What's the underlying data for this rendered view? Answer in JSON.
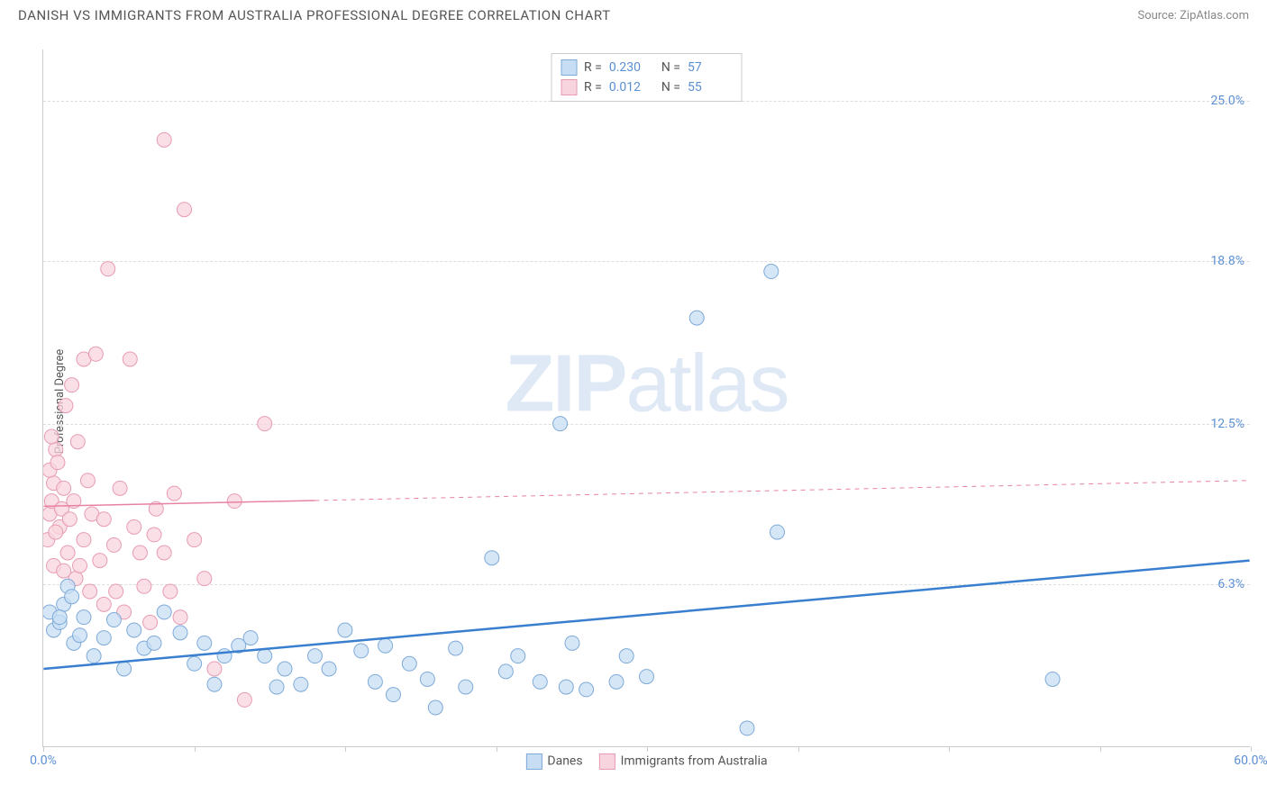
{
  "header": {
    "title": "DANISH VS IMMIGRANTS FROM AUSTRALIA PROFESSIONAL DEGREE CORRELATION CHART",
    "source": "Source: ZipAtlas.com"
  },
  "watermark": {
    "part1": "ZIP",
    "part2": "atlas"
  },
  "chart": {
    "type": "scatter",
    "ylabel": "Professional Degree",
    "xlim": [
      0,
      60
    ],
    "ylim": [
      0,
      27
    ],
    "xtick_positions": [
      0,
      7.5,
      15,
      22.5,
      30,
      37.5,
      45,
      52.5,
      60
    ],
    "xtick_labels_shown": {
      "0": "0.0%",
      "60": "60.0%"
    },
    "ytick_positions": [
      6.3,
      12.5,
      18.8,
      25.0
    ],
    "ytick_labels": [
      "6.3%",
      "12.5%",
      "18.8%",
      "25.0%"
    ],
    "grid_color": "#dddddd",
    "axis_color": "#cccccc",
    "background_color": "#ffffff",
    "series": {
      "danes": {
        "label": "Danes",
        "color_fill": "#c7ddf3",
        "color_stroke": "#7eaad8",
        "marker_radius": 8,
        "stroke_width": 1,
        "points": [
          [
            0.3,
            5.2
          ],
          [
            0.5,
            4.5
          ],
          [
            0.8,
            4.8
          ],
          [
            1.0,
            5.5
          ],
          [
            1.2,
            6.2
          ],
          [
            1.5,
            4.0
          ],
          [
            1.4,
            5.8
          ],
          [
            1.8,
            4.3
          ],
          [
            2.0,
            5.0
          ],
          [
            2.5,
            3.5
          ],
          [
            3.0,
            4.2
          ],
          [
            3.5,
            4.9
          ],
          [
            4.0,
            3.0
          ],
          [
            4.5,
            4.5
          ],
          [
            5.0,
            3.8
          ],
          [
            5.5,
            4.0
          ],
          [
            6.0,
            5.2
          ],
          [
            6.8,
            4.4
          ],
          [
            7.5,
            3.2
          ],
          [
            8.0,
            4.0
          ],
          [
            8.5,
            2.4
          ],
          [
            9.0,
            3.5
          ],
          [
            9.7,
            3.9
          ],
          [
            10.3,
            4.2
          ],
          [
            11.0,
            3.5
          ],
          [
            11.6,
            2.3
          ],
          [
            12.0,
            3.0
          ],
          [
            12.8,
            2.4
          ],
          [
            13.5,
            3.5
          ],
          [
            14.2,
            3.0
          ],
          [
            15.0,
            4.5
          ],
          [
            15.8,
            3.7
          ],
          [
            16.5,
            2.5
          ],
          [
            17.0,
            3.9
          ],
          [
            17.4,
            2.0
          ],
          [
            18.2,
            3.2
          ],
          [
            19.1,
            2.6
          ],
          [
            19.5,
            1.5
          ],
          [
            20.5,
            3.8
          ],
          [
            21.0,
            2.3
          ],
          [
            22.3,
            7.3
          ],
          [
            23.0,
            2.9
          ],
          [
            23.6,
            3.5
          ],
          [
            24.7,
            2.5
          ],
          [
            25.7,
            12.5
          ],
          [
            26.0,
            2.3
          ],
          [
            26.3,
            4.0
          ],
          [
            27.0,
            2.2
          ],
          [
            28.5,
            2.5
          ],
          [
            29.0,
            3.5
          ],
          [
            30.0,
            2.7
          ],
          [
            32.5,
            16.6
          ],
          [
            35.0,
            0.7
          ],
          [
            36.2,
            18.4
          ],
          [
            36.5,
            8.3
          ],
          [
            50.2,
            2.6
          ],
          [
            0.8,
            5.0
          ]
        ],
        "trend": {
          "y_at_xmin": 3.0,
          "y_at_xmax": 7.2,
          "color": "#3a7fcf",
          "width": 2.5
        }
      },
      "immigrants": {
        "label": "Immigrants from Australia",
        "color_fill": "#f8d5de",
        "color_stroke": "#e79bb2",
        "marker_radius": 8,
        "stroke_width": 1,
        "points": [
          [
            0.2,
            8.0
          ],
          [
            0.3,
            9.0
          ],
          [
            0.4,
            9.5
          ],
          [
            0.5,
            10.2
          ],
          [
            0.3,
            10.7
          ],
          [
            0.6,
            11.5
          ],
          [
            0.4,
            12.0
          ],
          [
            0.8,
            8.5
          ],
          [
            0.9,
            9.2
          ],
          [
            1.0,
            10.0
          ],
          [
            0.7,
            11.0
          ],
          [
            1.2,
            7.5
          ],
          [
            1.3,
            8.8
          ],
          [
            1.5,
            9.5
          ],
          [
            1.1,
            13.2
          ],
          [
            1.6,
            6.5
          ],
          [
            1.8,
            7.0
          ],
          [
            2.0,
            8.0
          ],
          [
            1.4,
            14.0
          ],
          [
            2.2,
            10.3
          ],
          [
            2.0,
            15.0
          ],
          [
            2.4,
            9.0
          ],
          [
            2.8,
            7.2
          ],
          [
            2.6,
            15.2
          ],
          [
            3.2,
            18.5
          ],
          [
            3.5,
            7.8
          ],
          [
            3.0,
            5.5
          ],
          [
            3.8,
            10.0
          ],
          [
            4.0,
            5.2
          ],
          [
            4.5,
            8.5
          ],
          [
            4.3,
            15.0
          ],
          [
            5.0,
            6.2
          ],
          [
            5.6,
            9.2
          ],
          [
            5.3,
            4.8
          ],
          [
            6.0,
            7.5
          ],
          [
            6.5,
            9.8
          ],
          [
            6.0,
            23.5
          ],
          [
            6.8,
            5.0
          ],
          [
            7.0,
            20.8
          ],
          [
            7.5,
            8.0
          ],
          [
            8.5,
            3.0
          ],
          [
            8.0,
            6.5
          ],
          [
            9.5,
            9.5
          ],
          [
            10.0,
            1.8
          ],
          [
            11.0,
            12.5
          ],
          [
            0.5,
            7.0
          ],
          [
            0.6,
            8.3
          ],
          [
            1.0,
            6.8
          ],
          [
            1.7,
            11.8
          ],
          [
            2.3,
            6.0
          ],
          [
            3.0,
            8.8
          ],
          [
            3.6,
            6.0
          ],
          [
            4.8,
            7.5
          ],
          [
            5.5,
            8.2
          ],
          [
            6.3,
            6.0
          ]
        ],
        "trend": {
          "y_at_xmin": 9.3,
          "y_at_xmax": 10.3,
          "color": "#e882a4",
          "width": 1.5,
          "solid_until_x": 13.5
        }
      }
    },
    "legend_top": {
      "rows": [
        {
          "swatch_fill": "#c7ddf3",
          "swatch_stroke": "#7eaad8",
          "r_label": "R =",
          "r_value": "0.230",
          "n_label": "N =",
          "n_value": "57"
        },
        {
          "swatch_fill": "#f8d5de",
          "swatch_stroke": "#e79bb2",
          "r_label": "R =",
          "r_value": "0.012",
          "n_label": "N =",
          "n_value": "55"
        }
      ]
    },
    "legend_bottom": [
      {
        "swatch_fill": "#c7ddf3",
        "swatch_stroke": "#7eaad8",
        "label": "Danes"
      },
      {
        "swatch_fill": "#f8d5de",
        "swatch_stroke": "#e79bb2",
        "label": "Immigrants from Australia"
      }
    ]
  }
}
